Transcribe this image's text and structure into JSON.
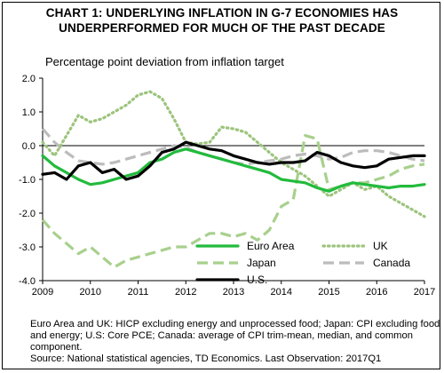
{
  "chart_data": {
    "type": "line",
    "title": "CHART 1: UNDERLYING INFLATION IN G-7 ECONOMIES HAS UNDERPERFORMED FOR MUCH OF THE PAST DECADE",
    "title_lines": [
      "CHART 1: UNDERLYING INFLATION IN G-7 ECONOMIES HAS",
      "UNDERPERFORMED FOR MUCH OF THE PAST DECADE"
    ],
    "subtitle": "Percentage point deviation from inflation target",
    "xlabel": "",
    "ylabel": "",
    "xlim": [
      2009,
      2017
    ],
    "ylim": [
      -4.0,
      2.0
    ],
    "x_ticks": [
      "2009",
      "2010",
      "2011",
      "2012",
      "2013",
      "2014",
      "2015",
      "2016",
      "2017"
    ],
    "y_ticks": [
      "2.0",
      "1.0",
      "0.0",
      "-1.0",
      "-2.0",
      "-3.0",
      "-4.0"
    ],
    "grid": false,
    "zero_line": true,
    "legend_position": "bottom-right",
    "series": [
      {
        "name": "Euro Area",
        "color": "#22bb3c",
        "style": "solid",
        "x": [
          2009.0,
          2009.25,
          2009.5,
          2009.75,
          2010.0,
          2010.25,
          2010.5,
          2010.75,
          2011.0,
          2011.25,
          2011.5,
          2011.75,
          2012.0,
          2012.25,
          2012.5,
          2012.75,
          2013.0,
          2013.25,
          2013.5,
          2013.75,
          2014.0,
          2014.25,
          2014.5,
          2014.75,
          2015.0,
          2015.25,
          2015.5,
          2015.75,
          2016.0,
          2016.25,
          2016.5,
          2016.75,
          2017.0
        ],
        "y": [
          -0.3,
          -0.6,
          -0.8,
          -1.0,
          -1.15,
          -1.1,
          -1.0,
          -0.9,
          -0.8,
          -0.5,
          -0.4,
          -0.2,
          -0.1,
          -0.2,
          -0.3,
          -0.4,
          -0.5,
          -0.6,
          -0.7,
          -0.8,
          -1.0,
          -1.05,
          -1.1,
          -1.25,
          -1.35,
          -1.2,
          -1.1,
          -1.15,
          -1.2,
          -1.25,
          -1.2,
          -1.2,
          -1.15
        ]
      },
      {
        "name": "UK",
        "color": "#9cc47c",
        "style": "dotted",
        "x": [
          2009.0,
          2009.25,
          2009.5,
          2009.75,
          2010.0,
          2010.25,
          2010.5,
          2010.75,
          2011.0,
          2011.25,
          2011.5,
          2011.75,
          2012.0,
          2012.25,
          2012.5,
          2012.75,
          2013.0,
          2013.25,
          2013.5,
          2013.75,
          2014.0,
          2014.25,
          2014.5,
          2014.75,
          2015.0,
          2015.25,
          2015.5,
          2015.75,
          2016.0,
          2016.25,
          2016.5,
          2016.75,
          2017.0
        ],
        "y": [
          0.1,
          -0.3,
          0.3,
          0.9,
          0.7,
          0.8,
          1.0,
          1.2,
          1.5,
          1.6,
          1.4,
          0.8,
          0.1,
          0.05,
          0.1,
          0.55,
          0.5,
          0.4,
          0.1,
          -0.2,
          -0.5,
          -0.7,
          -0.9,
          -1.2,
          -1.5,
          -1.3,
          -1.1,
          -1.3,
          -1.2,
          -1.5,
          -1.7,
          -1.9,
          -2.1
        ]
      },
      {
        "name": "Japan",
        "color": "#a8d08d",
        "style": "dashed",
        "x": [
          2009.0,
          2009.25,
          2009.5,
          2009.75,
          2010.0,
          2010.25,
          2010.5,
          2010.75,
          2011.0,
          2011.25,
          2011.5,
          2011.75,
          2012.0,
          2012.25,
          2012.5,
          2012.75,
          2013.0,
          2013.25,
          2013.5,
          2013.75,
          2014.0,
          2014.25,
          2014.5,
          2014.75,
          2015.0,
          2015.25,
          2015.5,
          2015.75,
          2016.0,
          2016.25,
          2016.5,
          2016.75,
          2017.0
        ],
        "y": [
          -2.2,
          -2.6,
          -2.9,
          -3.2,
          -3.0,
          -3.3,
          -3.6,
          -3.4,
          -3.3,
          -3.2,
          -3.1,
          -3.0,
          -3.0,
          -2.8,
          -2.6,
          -2.6,
          -2.7,
          -2.6,
          -2.8,
          -2.5,
          -1.8,
          -1.6,
          0.3,
          0.2,
          -1.3,
          -1.2,
          -1.1,
          -1.1,
          -1.0,
          -0.9,
          -0.7,
          -0.6,
          -0.55
        ]
      },
      {
        "name": "Canada",
        "color": "#bcbcbc",
        "style": "dashed",
        "x": [
          2009.0,
          2009.25,
          2009.5,
          2009.75,
          2010.0,
          2010.25,
          2010.5,
          2010.75,
          2011.0,
          2011.25,
          2011.5,
          2011.75,
          2012.0,
          2012.25,
          2012.5,
          2012.75,
          2013.0,
          2013.25,
          2013.5,
          2013.75,
          2014.0,
          2014.25,
          2014.5,
          2014.75,
          2015.0,
          2015.25,
          2015.5,
          2015.75,
          2016.0,
          2016.25,
          2016.5,
          2016.75,
          2017.0
        ],
        "y": [
          0.5,
          0.1,
          -0.2,
          -0.45,
          -0.5,
          -0.55,
          -0.5,
          -0.4,
          -0.3,
          -0.2,
          -0.1,
          0.0,
          -0.05,
          -0.2,
          -0.3,
          -0.4,
          -0.5,
          -0.55,
          -0.5,
          -0.45,
          -0.4,
          -0.3,
          -0.25,
          -0.3,
          -0.4,
          -0.35,
          -0.2,
          -0.15,
          -0.15,
          -0.2,
          -0.3,
          -0.4,
          -0.45
        ]
      },
      {
        "name": "U.S.",
        "color": "#000000",
        "style": "solid",
        "x": [
          2009.0,
          2009.25,
          2009.5,
          2009.75,
          2010.0,
          2010.25,
          2010.5,
          2010.75,
          2011.0,
          2011.25,
          2011.5,
          2011.75,
          2012.0,
          2012.25,
          2012.5,
          2012.75,
          2013.0,
          2013.25,
          2013.5,
          2013.75,
          2014.0,
          2014.25,
          2014.5,
          2014.75,
          2015.0,
          2015.25,
          2015.5,
          2015.75,
          2016.0,
          2016.25,
          2016.5,
          2016.75,
          2017.0
        ],
        "y": [
          -0.85,
          -0.8,
          -1.0,
          -0.6,
          -0.5,
          -0.8,
          -0.7,
          -1.0,
          -0.9,
          -0.6,
          -0.2,
          -0.1,
          0.1,
          0.0,
          -0.1,
          -0.15,
          -0.3,
          -0.4,
          -0.5,
          -0.55,
          -0.5,
          -0.5,
          -0.45,
          -0.2,
          -0.3,
          -0.5,
          -0.6,
          -0.65,
          -0.6,
          -0.4,
          -0.35,
          -0.3,
          -0.3
        ]
      }
    ],
    "notes": [
      "Euro Area and UK: HICP excluding energy and unprocessed food; Japan: CPI excluding food and energy; U.S: Core PCE; Canada: average of CPI trim-mean, median, and common component.",
      "Source: National statistical agencies, TD Economics. Last Observation: 2017Q1"
    ]
  }
}
